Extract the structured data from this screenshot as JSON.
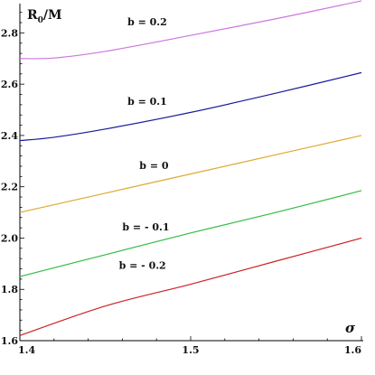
{
  "chart_data": {
    "type": "line",
    "title": "",
    "xlabel": "σ",
    "ylabel": {
      "main": "R",
      "sub": "0",
      "tail": "/M"
    },
    "xlim": [
      1.4,
      1.6
    ],
    "ylim": [
      1.6,
      2.9
    ],
    "xticks": [
      1.4,
      1.5,
      1.6
    ],
    "xtick_labels": [
      "1.4",
      "1.5",
      "1.6"
    ],
    "yticks": [
      1.6,
      1.8,
      2.0,
      2.2,
      2.4,
      2.6,
      2.8
    ],
    "ytick_labels": [
      "1.6",
      "1.8",
      "2.0",
      "2.2",
      "2.4",
      "2.6",
      "2.8"
    ],
    "grid": false,
    "series": [
      {
        "name": "b = 0.2",
        "color": "#cc77dd",
        "points": [
          [
            1.4,
            2.7
          ],
          [
            1.42,
            2.702
          ],
          [
            1.45,
            2.728
          ],
          [
            1.5,
            2.79
          ],
          [
            1.55,
            2.855
          ],
          [
            1.6,
            2.925
          ]
        ],
        "label_at": [
          1.463,
          2.83
        ]
      },
      {
        "name": "b = 0.1",
        "color": "#1a1a9a",
        "points": [
          [
            1.4,
            2.38
          ],
          [
            1.42,
            2.393
          ],
          [
            1.45,
            2.425
          ],
          [
            1.5,
            2.49
          ],
          [
            1.55,
            2.565
          ],
          [
            1.6,
            2.645
          ]
        ],
        "label_at": [
          1.463,
          2.52
        ]
      },
      {
        "name": "b = 0",
        "color": "#ddaa33",
        "points": [
          [
            1.4,
            2.1
          ],
          [
            1.45,
            2.175
          ],
          [
            1.5,
            2.25
          ],
          [
            1.55,
            2.325
          ],
          [
            1.6,
            2.4
          ]
        ],
        "label_at": [
          1.47,
          2.27
        ]
      },
      {
        "name": "b = - 0.1",
        "color": "#33bb44",
        "points": [
          [
            1.4,
            1.85
          ],
          [
            1.45,
            1.935
          ],
          [
            1.5,
            2.02
          ],
          [
            1.55,
            2.1
          ],
          [
            1.6,
            2.185
          ]
        ],
        "label_at": [
          1.46,
          2.03
        ]
      },
      {
        "name": "b = - 0.2",
        "color": "#cc2222",
        "points": [
          [
            1.4,
            1.62
          ],
          [
            1.45,
            1.735
          ],
          [
            1.5,
            1.82
          ],
          [
            1.55,
            1.91
          ],
          [
            1.6,
            2.0
          ]
        ],
        "label_at": [
          1.458,
          1.88
        ]
      }
    ]
  }
}
